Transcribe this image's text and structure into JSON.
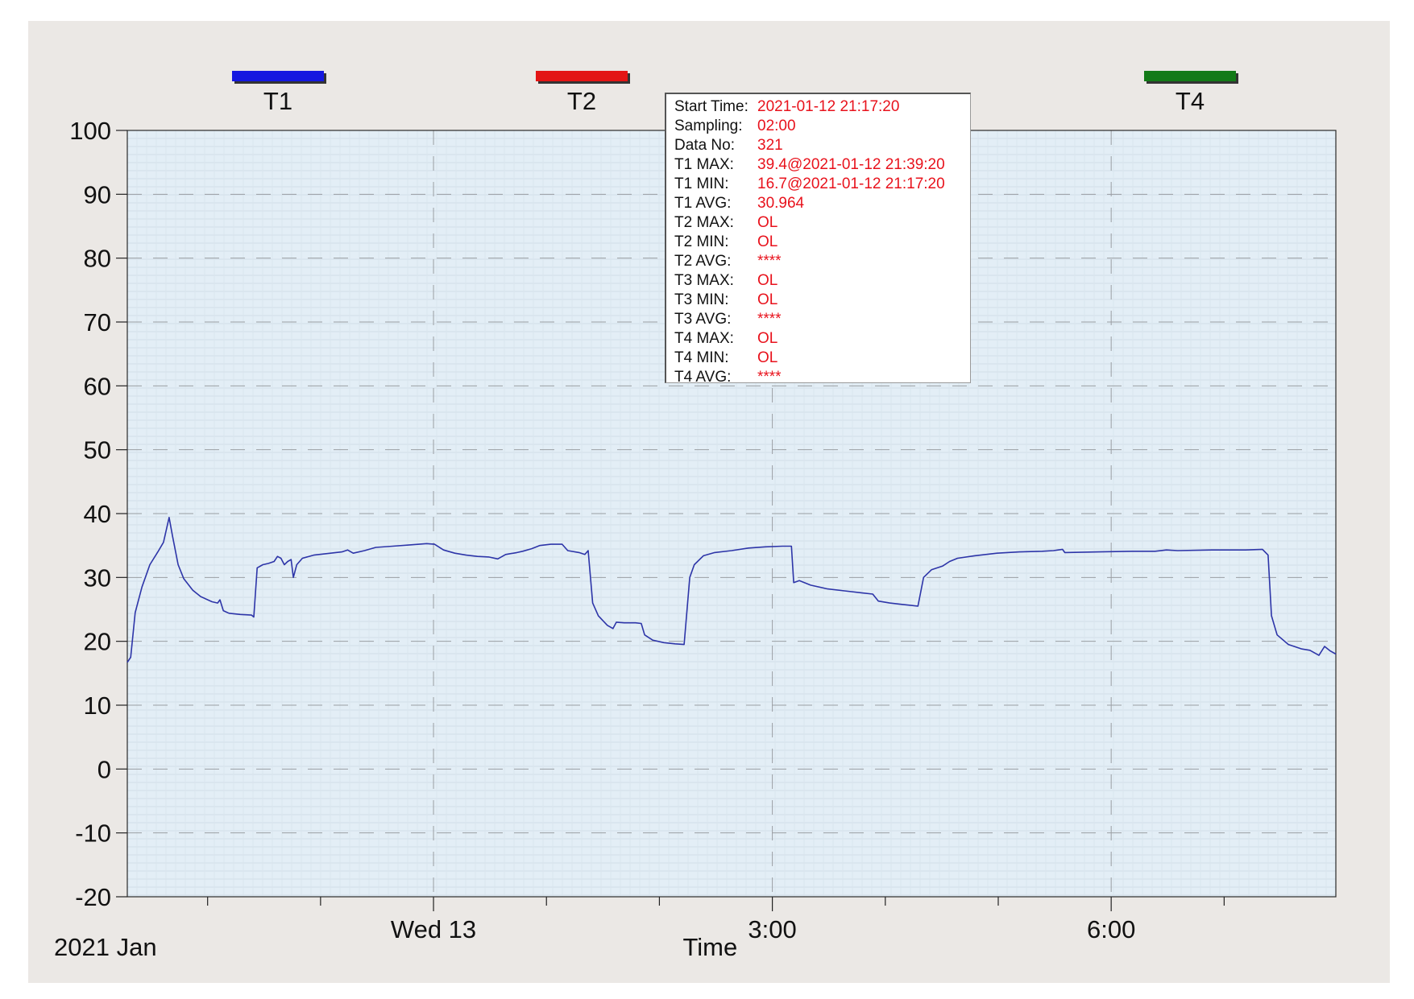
{
  "colors": {
    "frame_bg": "#ebe8e5",
    "plot_bg": "#e3eef6",
    "t1_line": "#2d35a8",
    "legend_t1": "#1518e0",
    "legend_t2": "#e31515",
    "legend_t4": "#137a18",
    "info_value": "#e8121c"
  },
  "legend": [
    {
      "name": "T1",
      "color": "#1518e0"
    },
    {
      "name": "T2",
      "color": "#e31515"
    },
    {
      "name": "T4",
      "color": "#137a18"
    }
  ],
  "info_box": {
    "rows": [
      {
        "label": "Start Time:",
        "value": "2021-01-12 21:17:20"
      },
      {
        "label": "Sampling:",
        "value": "02:00"
      },
      {
        "label": "Data No:",
        "value": "321"
      },
      {
        "label": "T1 MAX:",
        "value": "39.4@2021-01-12 21:39:20"
      },
      {
        "label": "T1 MIN:",
        "value": "16.7@2021-01-12 21:17:20"
      },
      {
        "label": "T1 AVG:",
        "value": "30.964"
      },
      {
        "label": "T2 MAX:",
        "value": "OL"
      },
      {
        "label": "T2 MIN:",
        "value": "OL"
      },
      {
        "label": "T2 AVG:",
        "value": "****"
      },
      {
        "label": "T3 MAX:",
        "value": "OL"
      },
      {
        "label": "T3 MIN:",
        "value": "OL"
      },
      {
        "label": "T3 AVG:",
        "value": "****"
      },
      {
        "label": "T4 MAX:",
        "value": "OL"
      },
      {
        "label": "T4 MIN:",
        "value": "OL"
      },
      {
        "label": "T4 AVG:",
        "value": "****"
      }
    ]
  },
  "chart_data": {
    "type": "line",
    "title": "",
    "xlabel": "Time",
    "ylabel": "",
    "x_date_label": "2021 Jan",
    "x_unit": "hours since 2021-01-12 21:17:20",
    "xlim": [
      0,
      10.7
    ],
    "ylim": [
      -20,
      100
    ],
    "yticks": [
      -20,
      -10,
      0,
      10,
      20,
      30,
      40,
      50,
      60,
      70,
      80,
      90,
      100
    ],
    "xtick_labels": [
      {
        "x": 2.711,
        "label": "Wed 13"
      },
      {
        "x": 5.711,
        "label": "3:00"
      },
      {
        "x": 8.711,
        "label": "6:00"
      }
    ],
    "minor_xticks": [
      0.711,
      1.711,
      3.711,
      4.711,
      6.711,
      7.711,
      9.711
    ],
    "grid": true,
    "legend_placement": "top",
    "series": [
      {
        "name": "T1",
        "color": "#2d35a8",
        "points": [
          [
            0,
            16.7
          ],
          [
            0.03,
            17.5
          ],
          [
            0.07,
            24.5
          ],
          [
            0.13,
            28.5
          ],
          [
            0.2,
            32
          ],
          [
            0.27,
            34
          ],
          [
            0.32,
            35.5
          ],
          [
            0.37,
            39.4
          ],
          [
            0.4,
            36.5
          ],
          [
            0.45,
            32
          ],
          [
            0.5,
            29.8
          ],
          [
            0.58,
            28
          ],
          [
            0.65,
            27
          ],
          [
            0.75,
            26.2
          ],
          [
            0.8,
            26
          ],
          [
            0.82,
            26.5
          ],
          [
            0.85,
            24.8
          ],
          [
            0.9,
            24.4
          ],
          [
            1.0,
            24.2
          ],
          [
            1.1,
            24.1
          ],
          [
            1.12,
            23.8
          ],
          [
            1.15,
            31.5
          ],
          [
            1.2,
            32
          ],
          [
            1.25,
            32.2
          ],
          [
            1.3,
            32.5
          ],
          [
            1.33,
            33.3
          ],
          [
            1.36,
            33
          ],
          [
            1.39,
            32
          ],
          [
            1.42,
            32.5
          ],
          [
            1.45,
            32.8
          ],
          [
            1.47,
            30
          ],
          [
            1.5,
            32
          ],
          [
            1.55,
            33
          ],
          [
            1.65,
            33.5
          ],
          [
            1.8,
            33.8
          ],
          [
            1.9,
            34
          ],
          [
            1.95,
            34.3
          ],
          [
            2.0,
            33.8
          ],
          [
            2.1,
            34.2
          ],
          [
            2.2,
            34.7
          ],
          [
            2.35,
            34.9
          ],
          [
            2.5,
            35.1
          ],
          [
            2.65,
            35.3
          ],
          [
            2.72,
            35.2
          ],
          [
            2.8,
            34.3
          ],
          [
            2.9,
            33.8
          ],
          [
            3.0,
            33.5
          ],
          [
            3.1,
            33.3
          ],
          [
            3.2,
            33.2
          ],
          [
            3.28,
            32.9
          ],
          [
            3.35,
            33.6
          ],
          [
            3.45,
            33.9
          ],
          [
            3.5,
            34.1
          ],
          [
            3.58,
            34.5
          ],
          [
            3.65,
            35.0
          ],
          [
            3.75,
            35.2
          ],
          [
            3.85,
            35.2
          ],
          [
            3.9,
            34.2
          ],
          [
            4.0,
            33.9
          ],
          [
            4.05,
            33.6
          ],
          [
            4.08,
            34.2
          ],
          [
            4.12,
            26
          ],
          [
            4.17,
            24
          ],
          [
            4.25,
            22.5
          ],
          [
            4.3,
            22
          ],
          [
            4.33,
            23
          ],
          [
            4.4,
            22.9
          ],
          [
            4.5,
            22.9
          ],
          [
            4.55,
            22.8
          ],
          [
            4.58,
            21
          ],
          [
            4.65,
            20.2
          ],
          [
            4.75,
            19.8
          ],
          [
            4.85,
            19.6
          ],
          [
            4.93,
            19.5
          ],
          [
            4.98,
            30
          ],
          [
            5.02,
            32
          ],
          [
            5.1,
            33.4
          ],
          [
            5.2,
            33.9
          ],
          [
            5.35,
            34.2
          ],
          [
            5.5,
            34.6
          ],
          [
            5.65,
            34.8
          ],
          [
            5.8,
            34.9
          ],
          [
            5.88,
            34.9
          ],
          [
            5.9,
            29.2
          ],
          [
            5.95,
            29.5
          ],
          [
            6.05,
            28.8
          ],
          [
            6.2,
            28.2
          ],
          [
            6.35,
            27.9
          ],
          [
            6.5,
            27.6
          ],
          [
            6.6,
            27.4
          ],
          [
            6.65,
            26.3
          ],
          [
            6.75,
            26
          ],
          [
            6.85,
            25.8
          ],
          [
            6.95,
            25.6
          ],
          [
            7.0,
            25.5
          ],
          [
            7.05,
            30
          ],
          [
            7.12,
            31.2
          ],
          [
            7.22,
            31.8
          ],
          [
            7.28,
            32.5
          ],
          [
            7.35,
            33
          ],
          [
            7.5,
            33.4
          ],
          [
            7.7,
            33.8
          ],
          [
            7.9,
            34.0
          ],
          [
            8.1,
            34.1
          ],
          [
            8.2,
            34.2
          ],
          [
            8.28,
            34.4
          ],
          [
            8.3,
            33.9
          ],
          [
            8.6,
            34.0
          ],
          [
            8.9,
            34.1
          ],
          [
            9.1,
            34.1
          ],
          [
            9.2,
            34.3
          ],
          [
            9.3,
            34.2
          ],
          [
            9.6,
            34.3
          ],
          [
            9.9,
            34.3
          ],
          [
            10.05,
            34.4
          ],
          [
            10.1,
            33.5
          ],
          [
            10.13,
            24
          ],
          [
            10.18,
            21
          ],
          [
            10.28,
            19.5
          ],
          [
            10.4,
            18.8
          ],
          [
            10.47,
            18.6
          ],
          [
            10.55,
            17.8
          ],
          [
            10.6,
            19.2
          ],
          [
            10.65,
            18.5
          ],
          [
            10.7,
            18
          ]
        ]
      }
    ]
  }
}
